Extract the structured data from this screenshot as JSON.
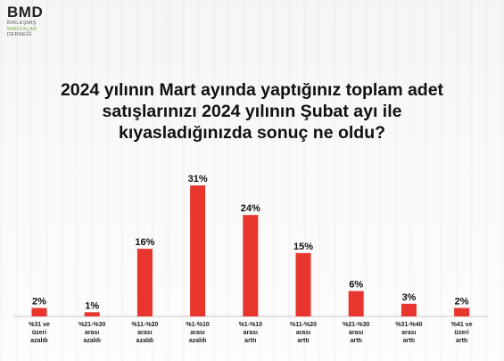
{
  "logo": {
    "mark": "BMD",
    "line1": "BİRLEŞMİŞ",
    "line2": "MARKALAR",
    "line3": "DERNEĞİ"
  },
  "title_lines": [
    "2024 yılının Mart ayında yaptığınız toplam adet",
    "satışlarınızı 2024 yılının Şubat ayı ile",
    "kıyasladığınızda sonuç ne oldu?"
  ],
  "colors": {
    "bar": "#e8362e",
    "axis": "#c9c9c9",
    "text": "#111111"
  },
  "chart_data": {
    "type": "bar",
    "title": "2024 yılının Mart ayında yaptığınız toplam adet satışlarınızı 2024 yılının Şubat ayı ile kıyasladığınızda sonuç ne oldu?",
    "categories": [
      [
        "%31 ve",
        "üzeri",
        "azaldı"
      ],
      [
        "%21-%30",
        "arası",
        "azaldı"
      ],
      [
        "%11-%20",
        "arası",
        "azaldı"
      ],
      [
        "%1-%10",
        "arası",
        "azaldı"
      ],
      [
        "%1-%10",
        "arası",
        "arttı"
      ],
      [
        "%11-%20",
        "arası",
        "arttı"
      ],
      [
        "%21-%30",
        "arası",
        "arttı"
      ],
      [
        "%31-%40",
        "arası",
        "arttı"
      ],
      [
        "%41 ve",
        "üzeri",
        "arttı"
      ]
    ],
    "values": [
      2,
      1,
      16,
      31,
      24,
      15,
      6,
      3,
      2
    ],
    "value_labels": [
      "2%",
      "1%",
      "16%",
      "31%",
      "24%",
      "15%",
      "6%",
      "3%",
      "2%"
    ],
    "ylim": [
      0,
      31
    ],
    "xlabel": "",
    "ylabel": "",
    "grid": false,
    "legend": "none"
  }
}
